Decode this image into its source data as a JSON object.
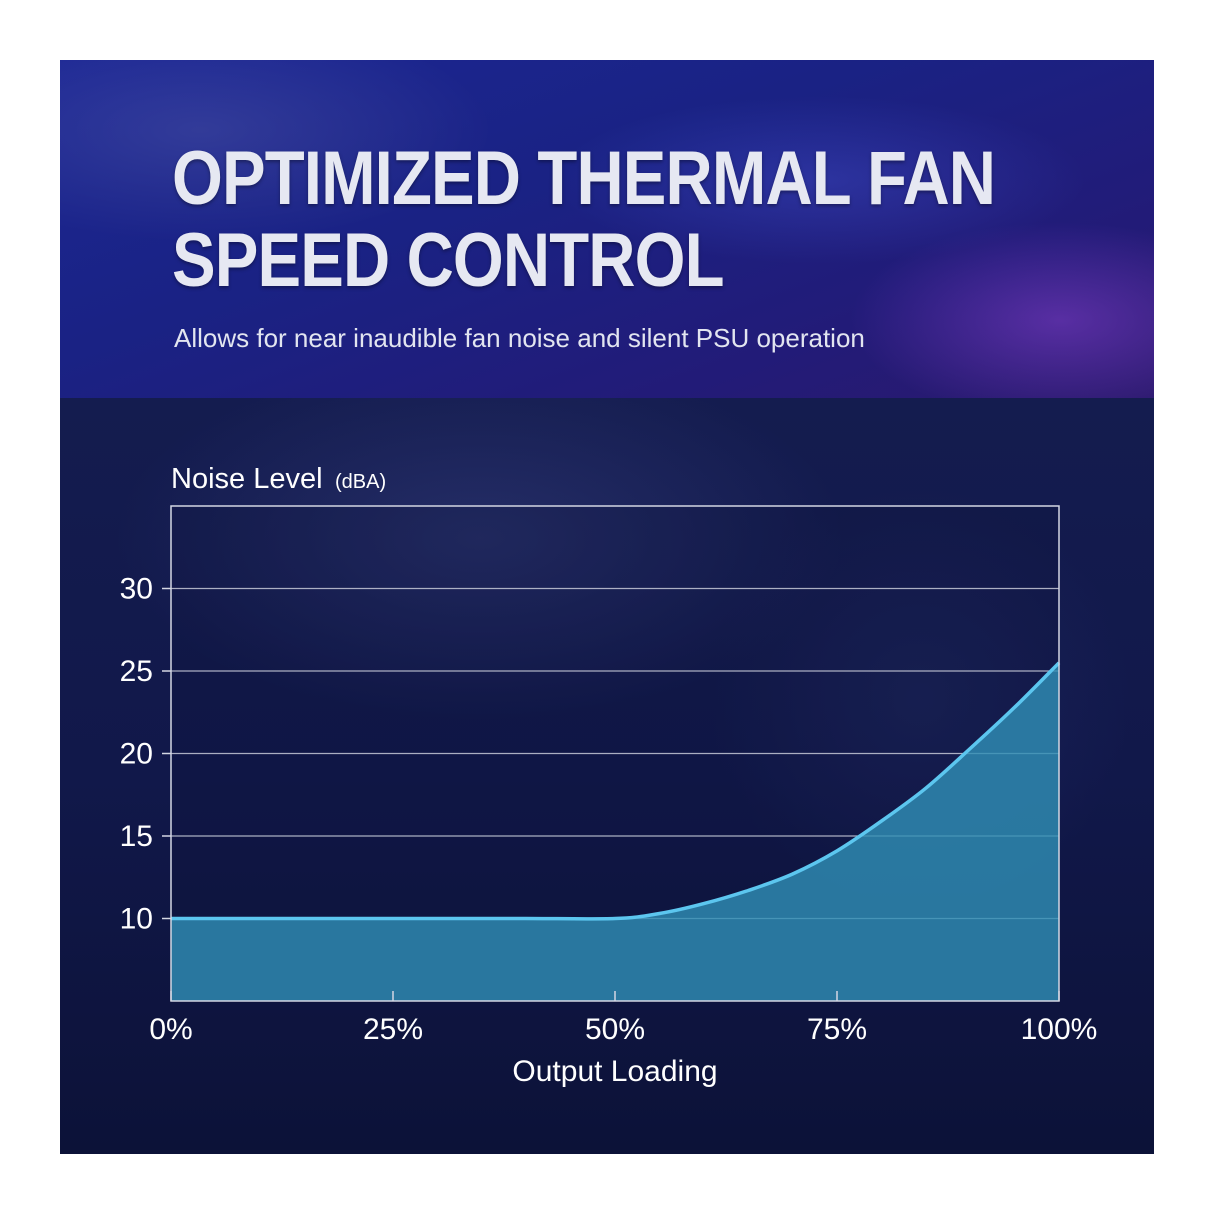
{
  "header": {
    "title": "OPTIMIZED THERMAL FAN\nSPEED CONTROL",
    "subtitle": "Allows for near inaudible fan noise and silent PSU operation"
  },
  "chart_data": {
    "type": "area",
    "ylabel": "Noise Level",
    "ylabel_unit": "(dBA)",
    "xlabel": "Output Loading",
    "x_ticks": [
      "0%",
      "25%",
      "50%",
      "75%",
      "100%"
    ],
    "y_ticks": [
      "10",
      "15",
      "20",
      "25",
      "30"
    ],
    "xlim": [
      0,
      100
    ],
    "ylim": [
      5,
      35
    ],
    "grid": true,
    "series": [
      {
        "x": [
          0,
          10,
          20,
          30,
          40,
          50,
          55,
          60,
          65,
          70,
          75,
          80,
          85,
          90,
          95,
          100
        ],
        "y": [
          10,
          10,
          10,
          10,
          10,
          10,
          10.3,
          10.9,
          11.7,
          12.7,
          14.1,
          15.9,
          17.9,
          20.3,
          22.8,
          25.5
        ]
      }
    ],
    "colors": {
      "fill": "#2f8db5",
      "line": "#5cc6ef",
      "grid": "#c7cad8",
      "frame": "#d4d7e3"
    }
  }
}
